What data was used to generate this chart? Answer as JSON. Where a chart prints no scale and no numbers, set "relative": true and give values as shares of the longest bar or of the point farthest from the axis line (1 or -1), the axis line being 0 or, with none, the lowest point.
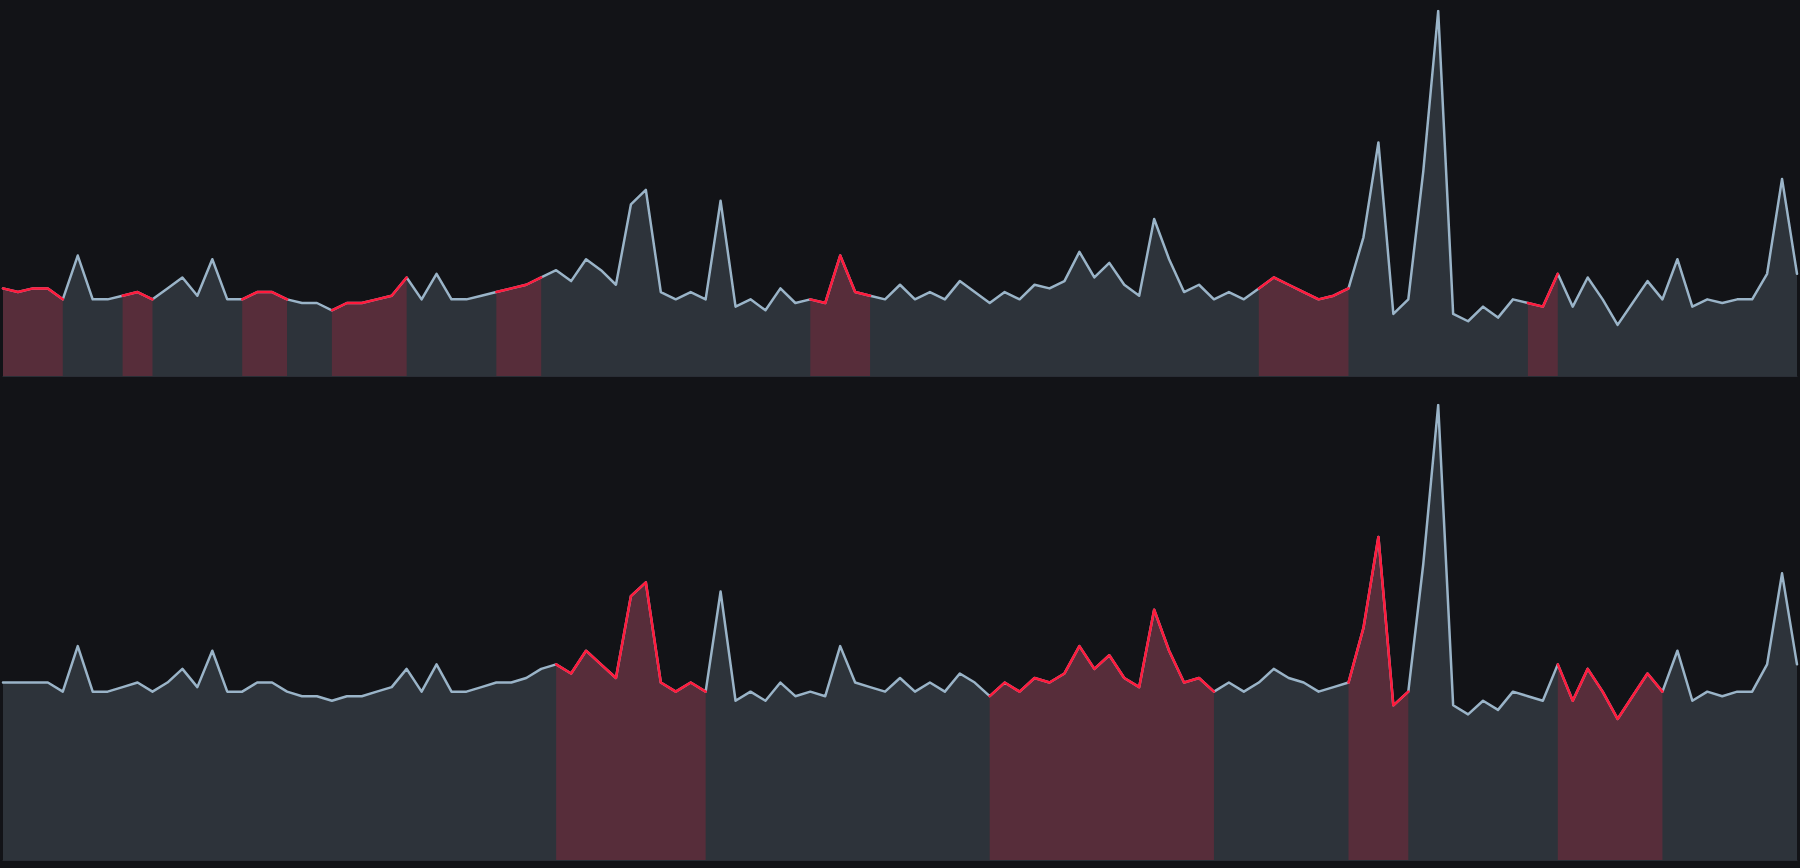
{
  "chart_data": [
    {
      "type": "area",
      "relative": true,
      "marker": "none",
      "line_style": "solid",
      "categories": [
        null,
        null,
        null,
        null,
        null,
        null,
        null,
        null,
        null,
        null,
        null,
        null,
        null,
        null,
        null,
        null,
        null,
        null,
        null,
        null,
        null,
        null,
        null,
        null,
        null,
        null,
        null,
        null,
        null,
        null,
        null,
        null,
        null,
        null,
        null,
        null,
        null,
        null,
        null,
        null,
        null,
        null,
        null,
        null,
        null,
        null,
        null,
        null,
        null,
        null,
        null,
        null,
        null,
        null,
        null,
        null,
        null,
        null,
        null,
        null,
        null,
        null,
        null,
        null,
        null,
        null,
        null,
        null,
        null,
        null,
        null,
        null,
        null,
        null,
        null,
        null,
        null,
        null,
        null,
        null,
        null,
        null,
        null,
        null,
        null,
        null,
        null,
        null,
        null,
        null,
        null,
        null,
        null,
        null,
        null,
        null,
        null,
        null,
        null,
        null,
        null,
        null,
        null,
        null,
        null,
        null,
        null,
        null,
        null,
        null,
        null,
        null,
        null,
        null,
        null,
        null,
        null,
        null,
        null,
        null,
        null
      ],
      "series": [
        {
          "color": "#9ab4c8",
          "values": [
            0.24,
            0.23,
            0.24,
            0.24,
            0.21,
            0.33,
            0.21,
            0.21,
            0.22,
            0.23,
            0.21,
            0.24,
            0.27,
            0.22,
            0.32,
            0.21,
            0.21,
            0.23,
            0.23,
            0.21,
            0.2,
            0.2,
            0.18,
            0.2,
            0.2,
            0.21,
            0.22,
            0.27,
            0.21,
            0.28,
            0.21,
            0.21,
            0.22,
            0.23,
            0.24,
            0.25,
            0.27,
            0.29,
            0.26,
            0.32,
            0.29,
            0.25,
            0.47,
            0.51,
            0.23,
            0.21,
            0.23,
            0.21,
            0.48,
            0.19,
            0.21,
            0.18,
            0.24,
            0.2,
            0.21,
            0.2,
            0.33,
            0.23,
            0.22,
            0.21,
            0.25,
            0.21,
            0.23,
            0.21,
            0.26,
            0.23,
            0.2,
            0.23,
            0.21,
            0.25,
            0.24,
            0.26,
            0.34,
            0.27,
            0.31,
            0.25,
            0.22,
            0.43,
            0.32,
            0.23,
            0.25,
            0.21,
            0.23,
            0.21,
            0.24,
            0.27,
            0.25,
            0.23,
            0.21,
            0.22,
            0.24,
            0.38,
            0.64,
            0.17,
            0.21,
            0.56,
            1.0,
            0.17,
            0.15,
            0.19,
            0.16,
            0.21,
            0.2,
            0.19,
            0.28,
            0.19,
            0.27,
            0.21,
            0.14,
            0.2,
            0.26,
            0.21,
            0.32,
            0.19,
            0.21,
            0.2,
            0.21,
            0.21,
            0.28,
            0.54,
            0.28
          ]
        },
        {
          "color": "#ff1a3c",
          "values": [
            0.24,
            0.23,
            0.24,
            0.24,
            0.21,
            null,
            null,
            null,
            0.22,
            0.23,
            0.21,
            null,
            null,
            null,
            null,
            null,
            0.21,
            0.23,
            0.23,
            0.21,
            null,
            null,
            0.18,
            0.2,
            0.2,
            0.21,
            0.22,
            0.27,
            null,
            null,
            null,
            null,
            null,
            0.23,
            0.24,
            0.25,
            0.27,
            null,
            null,
            null,
            null,
            null,
            null,
            null,
            null,
            null,
            null,
            null,
            null,
            null,
            null,
            null,
            null,
            null,
            0.21,
            0.2,
            0.33,
            0.23,
            0.22,
            null,
            null,
            null,
            null,
            null,
            null,
            null,
            null,
            null,
            null,
            null,
            null,
            null,
            null,
            null,
            null,
            null,
            null,
            null,
            null,
            null,
            null,
            null,
            null,
            null,
            0.24,
            0.27,
            0.25,
            0.23,
            0.21,
            0.22,
            0.24,
            null,
            null,
            null,
            null,
            null,
            null,
            null,
            null,
            null,
            null,
            null,
            0.2,
            0.19,
            0.28,
            null,
            null,
            null,
            null,
            null,
            null,
            null,
            null,
            null,
            null,
            null,
            null,
            null,
            null,
            null,
            null
          ]
        }
      ]
    },
    {
      "type": "area",
      "relative": true,
      "marker": "none",
      "line_style": "solid",
      "categories": [
        null,
        null,
        null,
        null,
        null,
        null,
        null,
        null,
        null,
        null,
        null,
        null,
        null,
        null,
        null,
        null,
        null,
        null,
        null,
        null,
        null,
        null,
        null,
        null,
        null,
        null,
        null,
        null,
        null,
        null,
        null,
        null,
        null,
        null,
        null,
        null,
        null,
        null,
        null,
        null,
        null,
        null,
        null,
        null,
        null,
        null,
        null,
        null,
        null,
        null,
        null,
        null,
        null,
        null,
        null,
        null,
        null,
        null,
        null,
        null,
        null,
        null,
        null,
        null,
        null,
        null,
        null,
        null,
        null,
        null,
        null,
        null,
        null,
        null,
        null,
        null,
        null,
        null,
        null,
        null,
        null,
        null,
        null,
        null,
        null,
        null,
        null,
        null,
        null,
        null,
        null,
        null,
        null,
        null,
        null,
        null,
        null,
        null,
        null,
        null,
        null,
        null,
        null,
        null,
        null,
        null,
        null,
        null,
        null,
        null,
        null,
        null,
        null,
        null,
        null,
        null,
        null,
        null,
        null,
        null,
        null
      ],
      "series": [
        {
          "color": "#9ab4c8",
          "values": [
            0.39,
            0.39,
            0.39,
            0.39,
            0.37,
            0.47,
            0.37,
            0.37,
            0.38,
            0.39,
            0.37,
            0.39,
            0.42,
            0.38,
            0.46,
            0.37,
            0.37,
            0.39,
            0.39,
            0.37,
            0.36,
            0.36,
            0.35,
            0.36,
            0.36,
            0.37,
            0.38,
            0.42,
            0.37,
            0.43,
            0.37,
            0.37,
            0.38,
            0.39,
            0.39,
            0.4,
            0.42,
            0.43,
            0.41,
            0.46,
            0.43,
            0.4,
            0.58,
            0.61,
            0.39,
            0.37,
            0.39,
            0.37,
            0.59,
            0.35,
            0.37,
            0.35,
            0.39,
            0.36,
            0.37,
            0.36,
            0.47,
            0.39,
            0.38,
            0.37,
            0.4,
            0.37,
            0.39,
            0.37,
            0.41,
            0.39,
            0.36,
            0.39,
            0.37,
            0.4,
            0.39,
            0.41,
            0.47,
            0.42,
            0.45,
            0.4,
            0.38,
            0.55,
            0.46,
            0.39,
            0.4,
            0.37,
            0.39,
            0.37,
            0.39,
            0.42,
            0.4,
            0.39,
            0.37,
            0.38,
            0.39,
            0.51,
            0.71,
            0.34,
            0.37,
            0.65,
            1.0,
            0.34,
            0.32,
            0.35,
            0.33,
            0.37,
            0.36,
            0.35,
            0.43,
            0.35,
            0.42,
            0.37,
            0.31,
            0.36,
            0.41,
            0.37,
            0.46,
            0.35,
            0.37,
            0.36,
            0.37,
            0.37,
            0.43,
            0.63,
            0.43
          ]
        },
        {
          "color": "#ff1a3c",
          "values": [
            null,
            null,
            null,
            null,
            null,
            null,
            null,
            null,
            null,
            null,
            null,
            null,
            null,
            null,
            null,
            null,
            null,
            null,
            null,
            null,
            null,
            null,
            null,
            null,
            null,
            null,
            null,
            null,
            null,
            null,
            null,
            null,
            null,
            null,
            null,
            null,
            null,
            0.43,
            0.41,
            0.46,
            0.43,
            0.4,
            0.58,
            0.61,
            0.39,
            0.37,
            0.39,
            0.37,
            null,
            null,
            null,
            null,
            null,
            null,
            null,
            null,
            null,
            null,
            null,
            null,
            null,
            null,
            null,
            null,
            null,
            null,
            0.36,
            0.39,
            0.37,
            0.4,
            0.39,
            0.41,
            0.47,
            0.42,
            0.45,
            0.4,
            0.38,
            0.55,
            0.46,
            0.39,
            0.4,
            0.37,
            null,
            null,
            null,
            null,
            null,
            null,
            null,
            null,
            0.39,
            0.51,
            0.71,
            0.34,
            0.37,
            null,
            null,
            null,
            null,
            null,
            null,
            null,
            null,
            null,
            0.43,
            0.35,
            0.42,
            0.37,
            0.31,
            0.36,
            0.41,
            0.37,
            null,
            null,
            null,
            null,
            null,
            null,
            null,
            null,
            null
          ]
        }
      ]
    }
  ]
}
